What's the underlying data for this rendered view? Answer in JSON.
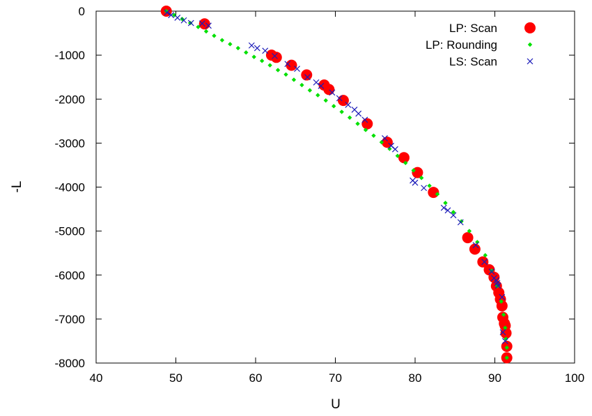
{
  "chart_data": {
    "type": "scatter",
    "xlabel": "U",
    "ylabel": "-L",
    "xlim": [
      40,
      100
    ],
    "ylim": [
      -8000,
      0
    ],
    "xticks": [
      "40",
      "50",
      "60",
      "70",
      "80",
      "90",
      "100"
    ],
    "yticks": [
      "0",
      "-1000",
      "-2000",
      "-3000",
      "-4000",
      "-5000",
      "-6000",
      "-7000",
      "-8000"
    ],
    "legend_position": "top-right",
    "series": [
      {
        "name": "LP: Scan",
        "marker": "circle",
        "color": "#ff0000",
        "x": [
          48.8,
          53.6,
          62.0,
          62.6,
          64.5,
          66.4,
          68.6,
          69.2,
          71.0,
          74.0,
          76.5,
          78.6,
          80.3,
          82.3,
          86.6,
          87.5,
          88.5,
          89.3,
          89.9,
          90.2,
          90.5,
          90.7,
          90.9,
          91.0,
          91.2,
          91.3,
          91.4,
          91.5,
          91.5
        ],
        "y": [
          0,
          -290,
          -1000,
          -1050,
          -1230,
          -1450,
          -1680,
          -1780,
          -2030,
          -2560,
          -2980,
          -3330,
          -3670,
          -4120,
          -5150,
          -5410,
          -5700,
          -5880,
          -6050,
          -6250,
          -6400,
          -6550,
          -6700,
          -6960,
          -7100,
          -7150,
          -7320,
          -7620,
          -7880
        ]
      },
      {
        "name": "LP: Rounding",
        "marker": "diamond",
        "color": "#00e000",
        "x": [
          48.8,
          49.8,
          50.8,
          51.8,
          52.8,
          53.8,
          54.8,
          55.8,
          56.8,
          57.8,
          58.8,
          59.8,
          60.8,
          61.8,
          62.8,
          63.8,
          64.8,
          65.8,
          66.8,
          67.8,
          68.8,
          69.8,
          70.8,
          71.8,
          72.8,
          73.8,
          74.8,
          75.8,
          76.8,
          77.8,
          78.8,
          79.8,
          80.8,
          81.8,
          82.8,
          83.8,
          84.8,
          85.8,
          86.8,
          87.8,
          88.8,
          89.6,
          90.3,
          90.8,
          91.1,
          91.3,
          91.4,
          91.5,
          91.5
        ],
        "y": [
          0,
          -90,
          -180,
          -270,
          -360,
          -460,
          -560,
          -660,
          -750,
          -840,
          -940,
          -1040,
          -1130,
          -1230,
          -1340,
          -1440,
          -1560,
          -1680,
          -1800,
          -1910,
          -2030,
          -2160,
          -2290,
          -2420,
          -2560,
          -2700,
          -2830,
          -2980,
          -3130,
          -3290,
          -3450,
          -3620,
          -3790,
          -3970,
          -4160,
          -4360,
          -4570,
          -4780,
          -5000,
          -5250,
          -5550,
          -5900,
          -6250,
          -6600,
          -6900,
          -7200,
          -7450,
          -7650,
          -7880
        ]
      },
      {
        "name": "LS: Scan",
        "marker": "x",
        "color": "#1a1ab8",
        "x": [
          48.9,
          49.4,
          50.2,
          51.0,
          51.9,
          53.3,
          54.1,
          59.5,
          60.2,
          61.2,
          62.4,
          64.0,
          65.2,
          66.5,
          67.6,
          68.2,
          69.6,
          70.5,
          71.6,
          72.4,
          72.9,
          73.7,
          76.2,
          77.0,
          77.5,
          79.7,
          80.0,
          81.1,
          83.6,
          84.1,
          84.8,
          85.7,
          87.6,
          88.7,
          89.6,
          89.9,
          90.2,
          90.3,
          90.4,
          90.9,
          91.0,
          91.3
        ],
        "y": [
          -30,
          -90,
          -150,
          -210,
          -270,
          -280,
          -330,
          -780,
          -840,
          -900,
          -1020,
          -1200,
          -1310,
          -1500,
          -1620,
          -1700,
          -1850,
          -1980,
          -2130,
          -2240,
          -2330,
          -2470,
          -2890,
          -3060,
          -3140,
          -3850,
          -3900,
          -4020,
          -4470,
          -4530,
          -4640,
          -4800,
          -5320,
          -5700,
          -5920,
          -6070,
          -6120,
          -6180,
          -6240,
          -6500,
          -7300,
          -7500
        ]
      }
    ]
  }
}
